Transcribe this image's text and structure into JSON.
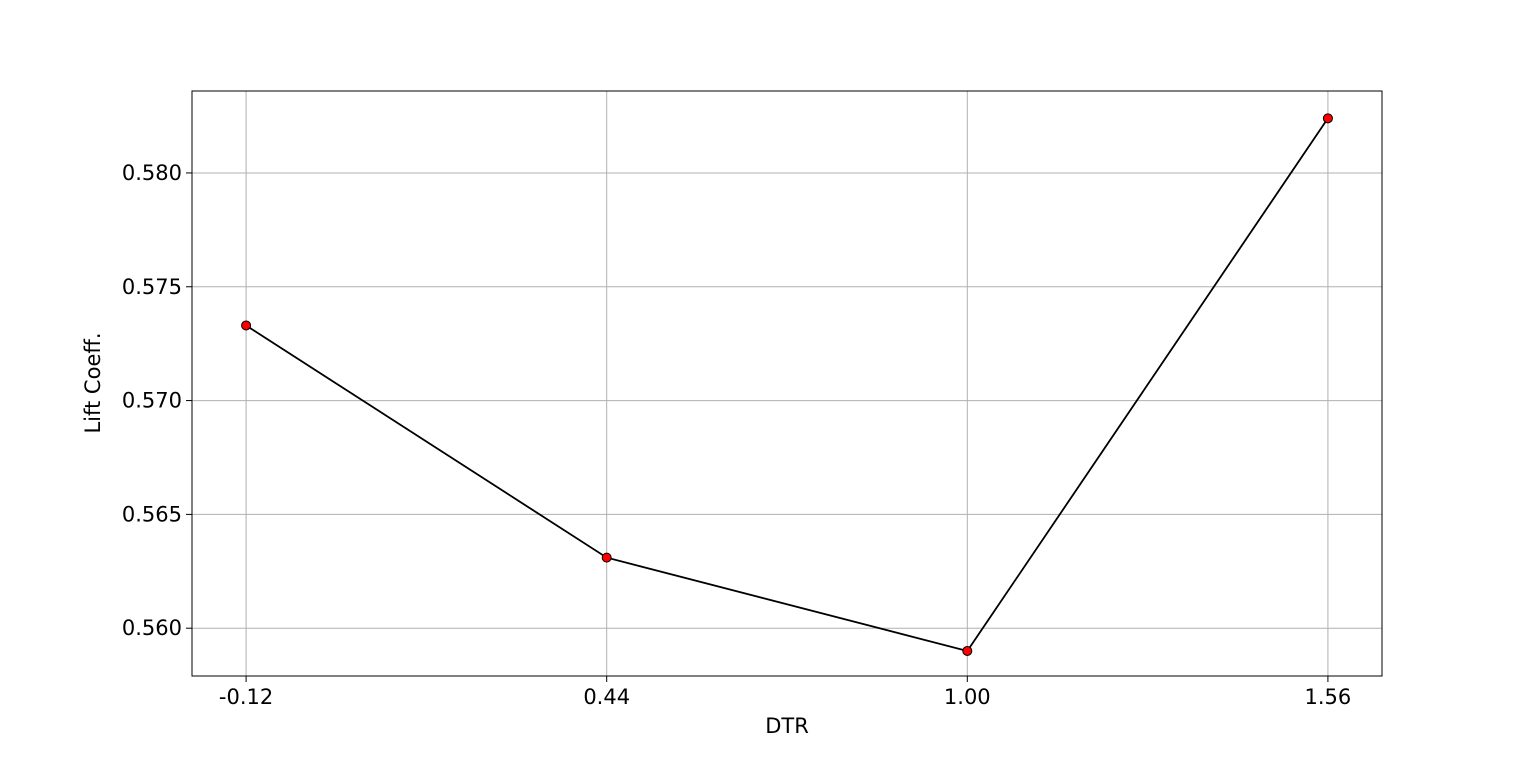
{
  "chart_data": {
    "type": "line",
    "title": "",
    "xlabel": "DTR",
    "ylabel": "Lift Coeff.",
    "x_tick_labels": [
      "-0.12",
      "0.44",
      "1.00",
      "1.56"
    ],
    "y_tick_labels": [
      "0.560",
      "0.565",
      "0.570",
      "0.575",
      "0.580"
    ],
    "x": [
      -0.12,
      0.44,
      1.0,
      1.56
    ],
    "series": [
      {
        "values": [
          0.5733,
          0.5631,
          0.559,
          0.5824
        ],
        "line_color": "#000000",
        "marker_color": "#ff0000",
        "marker_edge_color": "#000000"
      }
    ],
    "xlim": [
      -0.204,
      1.644
    ],
    "ylim": [
      0.5579,
      0.5836
    ],
    "y_ticks": [
      0.56,
      0.565,
      0.57,
      0.575,
      0.58
    ],
    "grid": true,
    "legend": false
  }
}
